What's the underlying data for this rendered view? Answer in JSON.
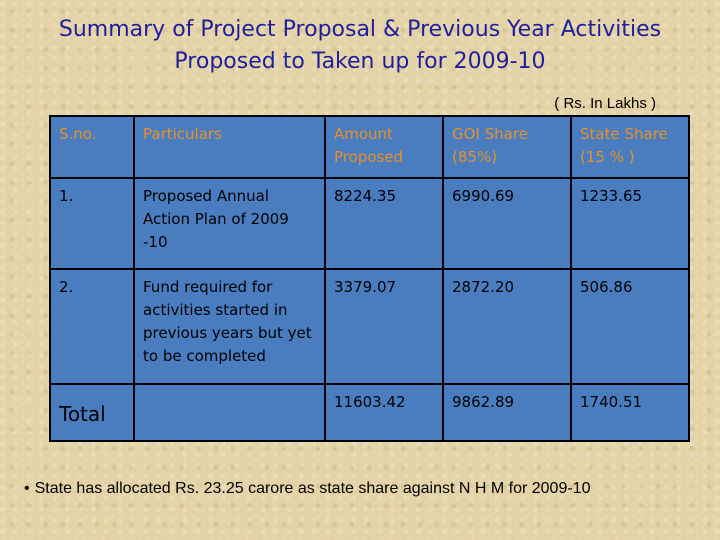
{
  "title": {
    "line1": "Summary of Project Proposal & Previous Year Activities",
    "line2": "Proposed to Taken up for 2009-10"
  },
  "units": "( Rs. In Lakhs )",
  "table": {
    "headers": {
      "sno": "S.no.",
      "particulars": "Particulars",
      "amount": "Amount Proposed",
      "goi": "GOI Share (85%)",
      "state": "State Share (15 % )"
    },
    "rows": [
      {
        "sno": "1.",
        "particulars": "Proposed Annual Action Plan of   2009 -10",
        "amount": "8224.35",
        "goi": "6990.69",
        "state": "1233.65"
      },
      {
        "sno": "2.",
        "particulars": "Fund required for activities started in previous years but yet to be completed",
        "amount": "3379.07",
        "goi": "2872.20",
        "state": "506.86"
      }
    ],
    "total": {
      "label": "Total",
      "particulars": "",
      "amount": "11603.42",
      "goi": "9862.89",
      "state": "1740.51"
    }
  },
  "note": {
    "bullet": "•",
    "text": "State has allocated Rs. 23.25 carore as state share against N H M for 2009-10"
  }
}
